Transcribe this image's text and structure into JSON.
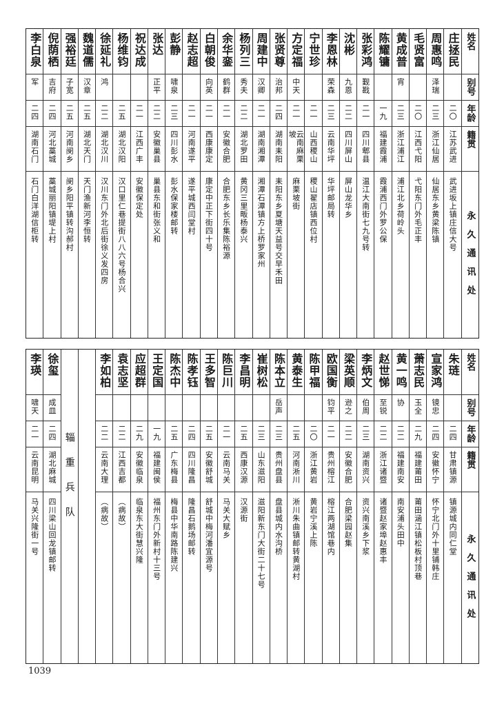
{
  "headers": {
    "name": "姓名",
    "alias": "别号",
    "age": "年龄",
    "origin": "籍贯",
    "address": "永久通讯处"
  },
  "top_rows": [
    {
      "name": "庄拯民",
      "alias": "",
      "age": "二〇",
      "origin": "江苏武进",
      "address": "武进坂上镇庄信大号"
    },
    {
      "name": "周惠鸣",
      "alias": "泽瑞",
      "age": "二三",
      "origin": "浙江仙居",
      "address": "仙居东乡黄梁陈镇"
    },
    {
      "name": "毛贤富",
      "alias": "",
      "age": "二〇",
      "origin": "江西弋阳",
      "address": "弋阳东门外毛正丰"
    },
    {
      "name": "黄成普",
      "alias": "宵",
      "age": "二三",
      "origin": "浙江浦江",
      "address": "浦江北乡荷岭头"
    },
    {
      "name": "陈耀镛",
      "alias": "",
      "age": "一九",
      "origin": "福建霞浦",
      "address": "霞浦西门外罗公保"
    },
    {
      "name": "张彩鸿",
      "alias": "觐戡",
      "age": "二一",
      "origin": "四川郫县",
      "address": "温江大南街七九号转"
    },
    {
      "name": "沈彬",
      "alias": "九恩",
      "age": "二二",
      "origin": "四川屏山",
      "address": "屏山龙华乡"
    },
    {
      "name": "李恩林",
      "alias": "荣森",
      "age": "二三",
      "origin": "云南华坪",
      "address": "华坪邮局转"
    },
    {
      "name": "宁世珍",
      "alias": "",
      "age": "二一",
      "origin": "山西稷山",
      "address": "稷山翟店镇西位村"
    },
    {
      "name": "方定福",
      "alias": "中天",
      "age": "二一",
      "origin": "云南麻栗坡",
      "address": "麻栗坡街"
    },
    {
      "name": "张贤尊",
      "alias": "治邦",
      "age": "二四",
      "origin": "湖南耒阳",
      "address": "耒阳东乡夏塘天益号交早禾田"
    },
    {
      "name": "周建中",
      "alias": "汉卿",
      "age": "二一",
      "origin": "湖南湘潭",
      "address": "湘潭石潭镇方上桥罗家州"
    },
    {
      "name": "杨列三",
      "alias": "秀夫",
      "age": "二二",
      "origin": "湖北罗田",
      "address": "黄冈三里畈杨泰兴"
    },
    {
      "name": "余华銮",
      "alias": "鹤群",
      "age": "二一",
      "origin": "安徽合肥",
      "address": "合肥东乡长乐集陈裕源"
    },
    {
      "name": "白朝俊",
      "alias": "向英",
      "age": "二一",
      "origin": "西康康定",
      "address": "康定中正下街四十号"
    },
    {
      "name": "赵志超",
      "alias": "",
      "age": "二一",
      "origin": "河南遂平",
      "address": "遂平城西闫堂村"
    },
    {
      "name": "彭静",
      "alias": "啸泉",
      "age": "二三",
      "origin": "四川彭水",
      "address": "彭水保家楼邮转"
    },
    {
      "name": "张达",
      "alias": "正平",
      "age": "二二",
      "origin": "安徽巢县",
      "address": "巢县东和街张义和"
    },
    {
      "name": "祝达成",
      "alias": "",
      "age": "二一",
      "origin": "江西广丰",
      "address": "安徽保定处"
    },
    {
      "name": "杨维钧",
      "alias": "",
      "age": "二五",
      "origin": "湖北汉阳",
      "address": "汉口里仁巷提街八八六号杨合兴"
    },
    {
      "name": "徐延礼",
      "alias": "鸿",
      "age": "二二",
      "origin": "湖北汉川",
      "address": "汉川东门外北后街徐义发四房"
    },
    {
      "name": "魏道儒",
      "alias": "汉章",
      "age": "二五",
      "origin": "湖北天门",
      "address": "天门渔新河李恒转"
    },
    {
      "name": "强裕廷",
      "alias": "子宽",
      "age": "二五",
      "origin": "河南阌乡",
      "address": "阌乡阳平镇转沟郝村"
    },
    {
      "name": "倪荫栖",
      "alias": "吉府",
      "age": "二四",
      "origin": "河北藁城",
      "address": "藁城丽阳镇堤上村"
    },
    {
      "name": "李白泉",
      "alias": "军",
      "age": "二四",
      "origin": "湖南石门",
      "address": "石门白洋湖信柜转"
    }
  ],
  "bottom_rows": [
    {
      "name": "朱琏",
      "alias": "",
      "age": "二四",
      "origin": "甘肃镇源",
      "address": "镇源城内同仁堂"
    },
    {
      "name": "宣家鸿",
      "alias": "镜忠",
      "age": "二四",
      "origin": "安徽怀宁",
      "address": "怀宁北门外十里铺韩庄"
    },
    {
      "name": "萧志民",
      "alias": "玉全",
      "age": "二九",
      "origin": "福建莆田",
      "address": "莆田涵江镇松板村顶巷"
    },
    {
      "name": "黄一鸣",
      "alias": "协",
      "age": "二二",
      "origin": "福建南安",
      "address": "南安浦头田中"
    },
    {
      "name": "赵世悌",
      "alias": "至锐",
      "age": "二二",
      "origin": "浙江诸暨",
      "address": "诸暨赵家埠赵惠丰"
    },
    {
      "name": "李炳文",
      "alias": "伯周",
      "age": "二三",
      "origin": "湖南资兴",
      "address": "资兴南溪乡下浆"
    },
    {
      "name": "梁英顺",
      "alias": "逊之",
      "age": "二二",
      "origin": "安徽合肥",
      "address": "合肥梁园赵集"
    },
    {
      "name": "欧国衡",
      "alias": "钧平",
      "age": "二一",
      "origin": "贵州榕江",
      "address": "榕江两湖馆巷内"
    },
    {
      "name": "陈甲福",
      "alias": "",
      "age": "二〇",
      "origin": "浙江黄岩",
      "address": "黄岩宁溪上陈"
    },
    {
      "name": "黄泰生",
      "alias": "",
      "age": "二五",
      "origin": "河南淅川",
      "address": "淅川朱曲镇邮转黄湖村"
    },
    {
      "name": "陈本立",
      "alias": "岳声",
      "age": "二三",
      "origin": "贵州盘县",
      "address": "盘县城内水沟桥"
    },
    {
      "name": "崔树松",
      "alias": "",
      "age": "二三",
      "origin": "山东滋阳",
      "address": "滋阳新东门大街二十七号"
    },
    {
      "name": "李昌明",
      "alias": "",
      "age": "二五",
      "origin": "西康汉源",
      "address": "汉源街"
    },
    {
      "name": "陈巨川",
      "alias": "",
      "age": "二一",
      "origin": "云南马关",
      "address": "马关大赋乡"
    },
    {
      "name": "王多智",
      "alias": "",
      "age": "二五",
      "origin": "安徽舒城",
      "address": "舒城中梅河潘宜源号"
    },
    {
      "name": "陈孝钰",
      "alias": "",
      "age": "二四",
      "origin": "四川隆昌",
      "address": "隆昌石鹅场邮转"
    },
    {
      "name": "陈杰中",
      "alias": "",
      "age": "二五",
      "origin": "广东梅县",
      "address": "梅县中华南路陈建兴"
    },
    {
      "name": "王定国",
      "alias": "",
      "age": "一九",
      "origin": "福建闽侯",
      "address": "福州东门外新村十三号"
    },
    {
      "name": "应超群",
      "alias": "",
      "age": "二九",
      "origin": "安徽临泉",
      "address": "临泉东大街慧兴隆"
    },
    {
      "name": "袁志坚",
      "alias": "",
      "age": "二二",
      "origin": "江西吉都",
      "address": "（病故）"
    },
    {
      "name": "李如柏",
      "alias": "",
      "age": "二二",
      "origin": "云南大理",
      "address": "（病故）"
    }
  ],
  "section_label": "辎重兵队",
  "after_section_rows": [
    {
      "name": "徐玺",
      "alias": "成皿",
      "age": "二四",
      "origin": "湖北麻城",
      "address": "四川梁山回龙镇邮转"
    },
    {
      "name": "李瑛",
      "alias": "啸天",
      "age": "二一",
      "origin": "云南昆明",
      "address": "马关兴隆街一号"
    }
  ],
  "page_number": "1039"
}
